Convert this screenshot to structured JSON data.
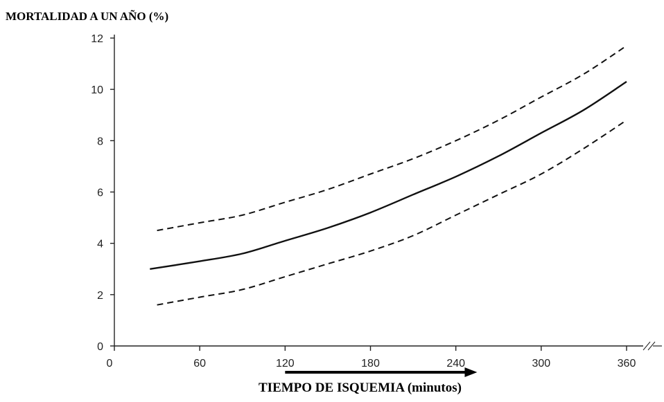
{
  "chart_data": {
    "type": "line",
    "title": "",
    "ylabel": "MORTALIDAD A UN AÑO (%)",
    "xlabel": "TIEMPO DE ISQUEMIA (minutos)",
    "xlim": [
      0,
      360
    ],
    "ylim": [
      0,
      12
    ],
    "xticks": [
      0,
      60,
      120,
      180,
      240,
      300,
      360
    ],
    "xtick_labels": [
      "0",
      "60",
      "120",
      "180",
      "240",
      "300",
      "360"
    ],
    "yticks": [
      0,
      2,
      4,
      6,
      8,
      10,
      12
    ],
    "ytick_labels": [
      "0",
      "2",
      "4",
      "6",
      "8",
      "10",
      "12"
    ],
    "grid": false,
    "axis_break": true,
    "annotation": "arrow along x axis from 120 to 255",
    "annotation_x_range": [
      120,
      255
    ],
    "series": [
      {
        "style": "dashed",
        "x": [
          30,
          60,
          90,
          120,
          150,
          180,
          210,
          240,
          270,
          300,
          330,
          360
        ],
        "values": [
          4.5,
          4.8,
          5.1,
          5.6,
          6.1,
          6.7,
          7.3,
          8.0,
          8.8,
          9.7,
          10.6,
          11.7
        ]
      },
      {
        "style": "solid",
        "x": [
          25,
          60,
          90,
          120,
          150,
          180,
          210,
          240,
          270,
          300,
          330,
          360
        ],
        "values": [
          3.0,
          3.3,
          3.6,
          4.1,
          4.6,
          5.2,
          5.9,
          6.6,
          7.4,
          8.3,
          9.2,
          10.3
        ]
      },
      {
        "style": "dashed",
        "x": [
          30,
          60,
          90,
          120,
          150,
          180,
          210,
          240,
          270,
          300,
          330,
          360
        ],
        "values": [
          1.6,
          1.9,
          2.2,
          2.7,
          3.2,
          3.7,
          4.3,
          5.1,
          5.9,
          6.7,
          7.7,
          8.8
        ]
      }
    ]
  }
}
